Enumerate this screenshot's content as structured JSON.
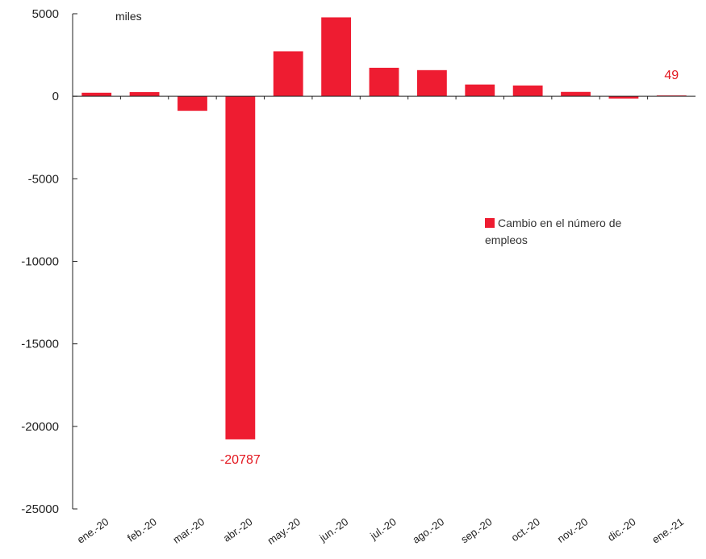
{
  "chart_data": {
    "type": "bar",
    "unit_label": "miles",
    "categories": [
      "ene.-20",
      "feb.-20",
      "mar.-20",
      "abr.-20",
      "may.-20",
      "jun.-20",
      "jul.-20",
      "ago.-20",
      "sep.-20",
      "oct.-20",
      "nov.-20",
      "dic.-20",
      "ene.-21"
    ],
    "series": [
      {
        "name": "Cambio en el número de empleos",
        "values": [
          214,
          251,
          -881,
          -20787,
          2725,
          4781,
          1726,
          1583,
          711,
          654,
          264,
          -140,
          49
        ]
      }
    ],
    "ylim": [
      -25000,
      5000
    ],
    "yticks": [
      5000,
      0,
      -5000,
      -10000,
      -15000,
      -20000,
      -25000
    ],
    "data_labels": [
      {
        "category": "abr.-20",
        "text": "-20787"
      },
      {
        "category": "ene.-21",
        "text": "49"
      }
    ],
    "legend_position": "right",
    "grid": false,
    "colors": {
      "bar": "#ee1c31",
      "label": "#e3171f",
      "axis": "#222222"
    }
  }
}
